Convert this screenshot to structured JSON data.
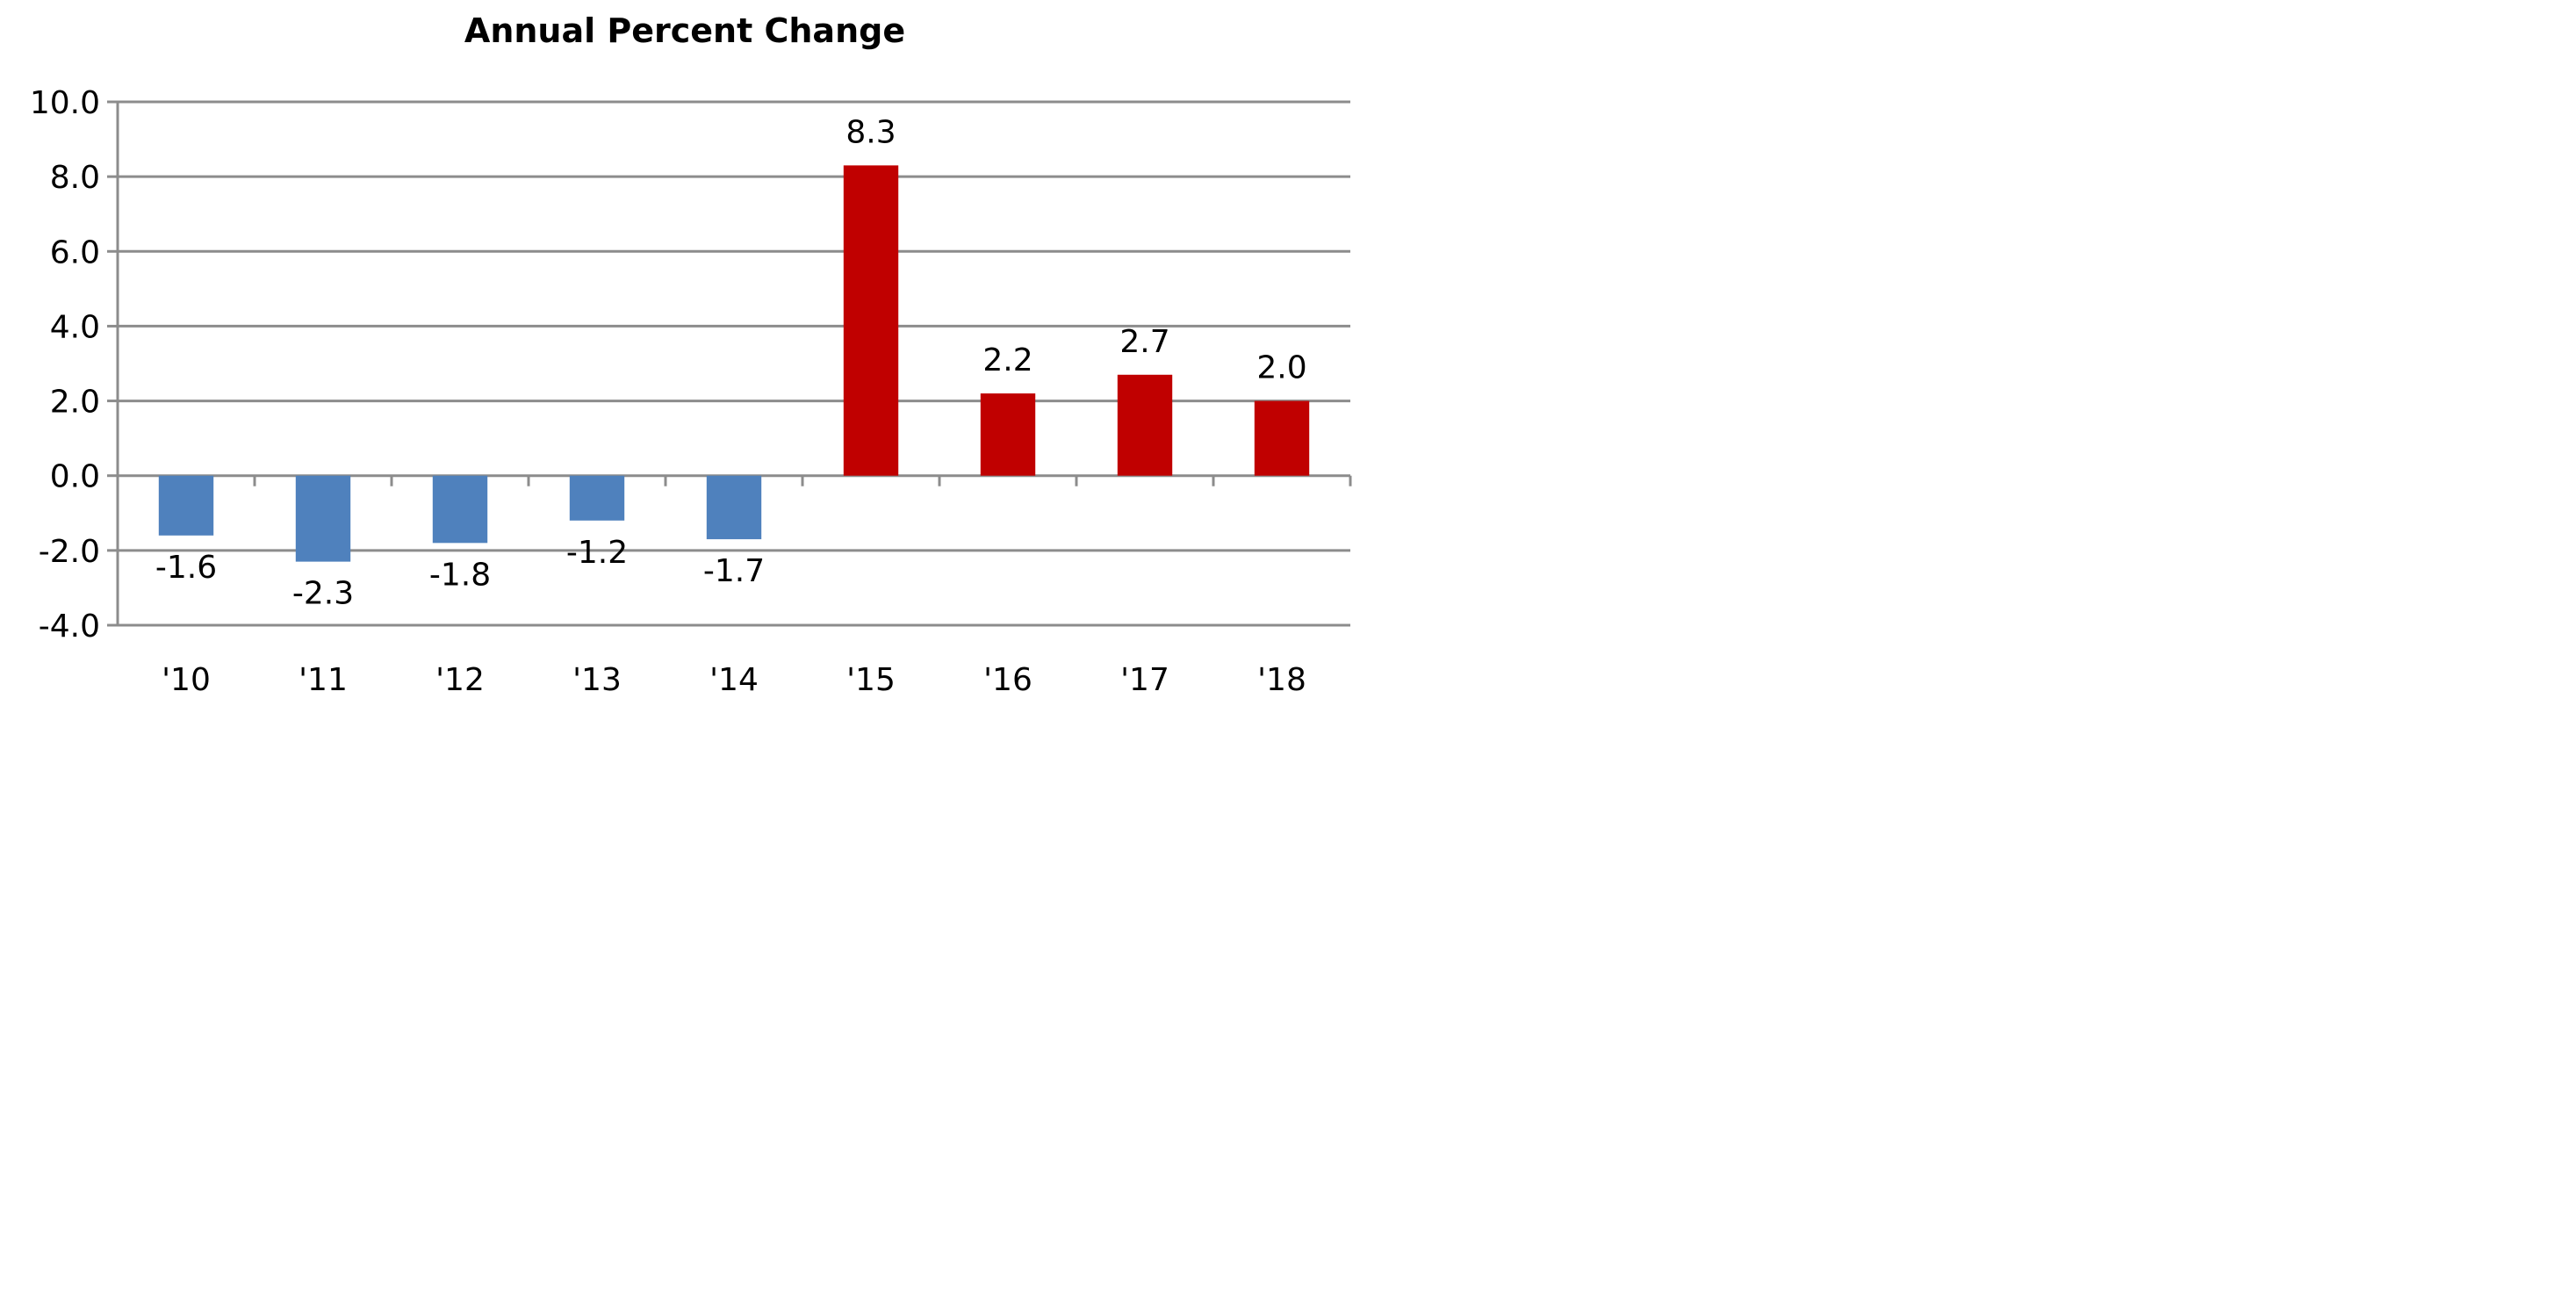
{
  "chart_data": {
    "type": "bar",
    "title": "Annual Percent Change",
    "xlabel": "",
    "ylabel": "",
    "categories": [
      "'10",
      "'11",
      "'12",
      "'13",
      "'14",
      "'15",
      "'16",
      "'17",
      "'18"
    ],
    "values": [
      -1.6,
      -2.3,
      -1.8,
      -1.2,
      -1.7,
      8.3,
      2.2,
      2.7,
      2.0
    ],
    "data_labels": [
      "-1.6",
      "-2.3",
      "-1.8",
      "-1.2",
      "-1.7",
      "8.3",
      "2.2",
      "2.7",
      "2.0"
    ],
    "ylim": [
      -4.0,
      10.0
    ],
    "yticks": [
      10.0,
      8.0,
      6.0,
      4.0,
      2.0,
      0.0,
      -2.0,
      -4.0
    ],
    "ytick_labels": [
      "10.0",
      "8.0",
      "6.0",
      "4.0",
      "2.0",
      "0.0",
      "-2.0",
      "-4.0"
    ],
    "grid": true,
    "legend": "none",
    "colors": {
      "negative": "#4f81bd",
      "positive": "#c00000",
      "grid": "#8c8c8c"
    }
  }
}
